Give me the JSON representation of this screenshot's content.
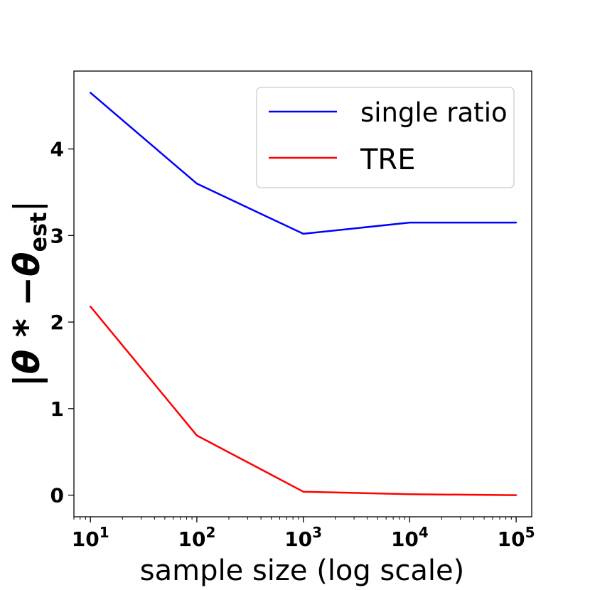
{
  "chart_data": {
    "type": "line",
    "xscale": "log",
    "x": [
      10,
      100,
      1000,
      10000,
      100000
    ],
    "xlim": [
      7,
      140000
    ],
    "ylim": [
      -0.25,
      4.9
    ],
    "yticks": [
      0,
      1,
      2,
      3,
      4
    ],
    "ytick_labels": [
      "0",
      "1",
      "2",
      "3",
      "4"
    ],
    "xticks": [
      {
        "value": 10,
        "base": "10",
        "exp": "1"
      },
      {
        "value": 100,
        "base": "10",
        "exp": "2"
      },
      {
        "value": 1000,
        "base": "10",
        "exp": "3"
      },
      {
        "value": 10000,
        "base": "10",
        "exp": "4"
      },
      {
        "value": 100000,
        "base": "10",
        "exp": "5"
      }
    ],
    "xlabel": "sample size (log scale)",
    "ylabel": "|θ * −θ",
    "ylabel_subscript": "est",
    "ylabel_close": "|",
    "legend_position": "upper-right",
    "series": [
      {
        "name": "single ratio",
        "color": "#0000ff",
        "values": [
          4.65,
          3.6,
          3.02,
          3.15,
          3.15
        ]
      },
      {
        "name": "TRE",
        "color": "#ff0000",
        "values": [
          2.18,
          0.69,
          0.04,
          0.01,
          0.0
        ]
      }
    ]
  }
}
